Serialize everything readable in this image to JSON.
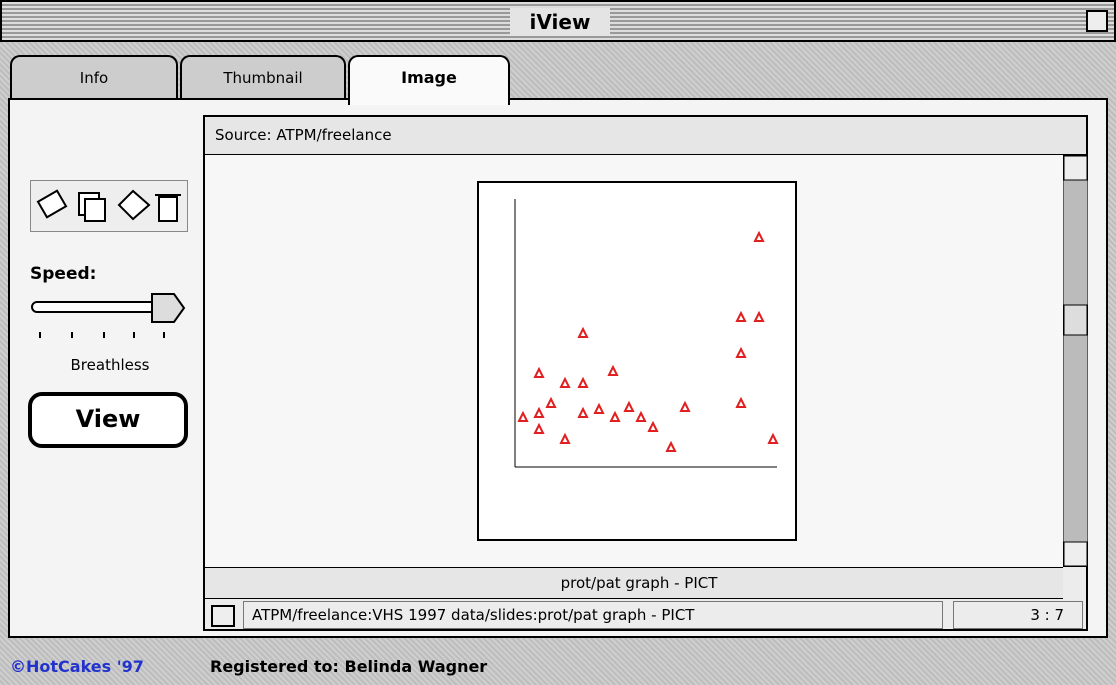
{
  "window": {
    "title": "iView"
  },
  "tabs": [
    "Info",
    "Thumbnail",
    "Image"
  ],
  "sidebar": {
    "speed_label": "Speed:",
    "speed_setting": "Breathless",
    "view_button": "View"
  },
  "viewer": {
    "source": "Source: ATPM/freelance",
    "caption": "prot/pat graph - PICT",
    "path": "ATPM/freelance:VHS 1997 data/slides:prot/pat graph - PICT",
    "counter": "3 : 7"
  },
  "footer": {
    "copyright": "©HotCakes '97",
    "registration": "Registered to: Belinda Wagner"
  }
}
